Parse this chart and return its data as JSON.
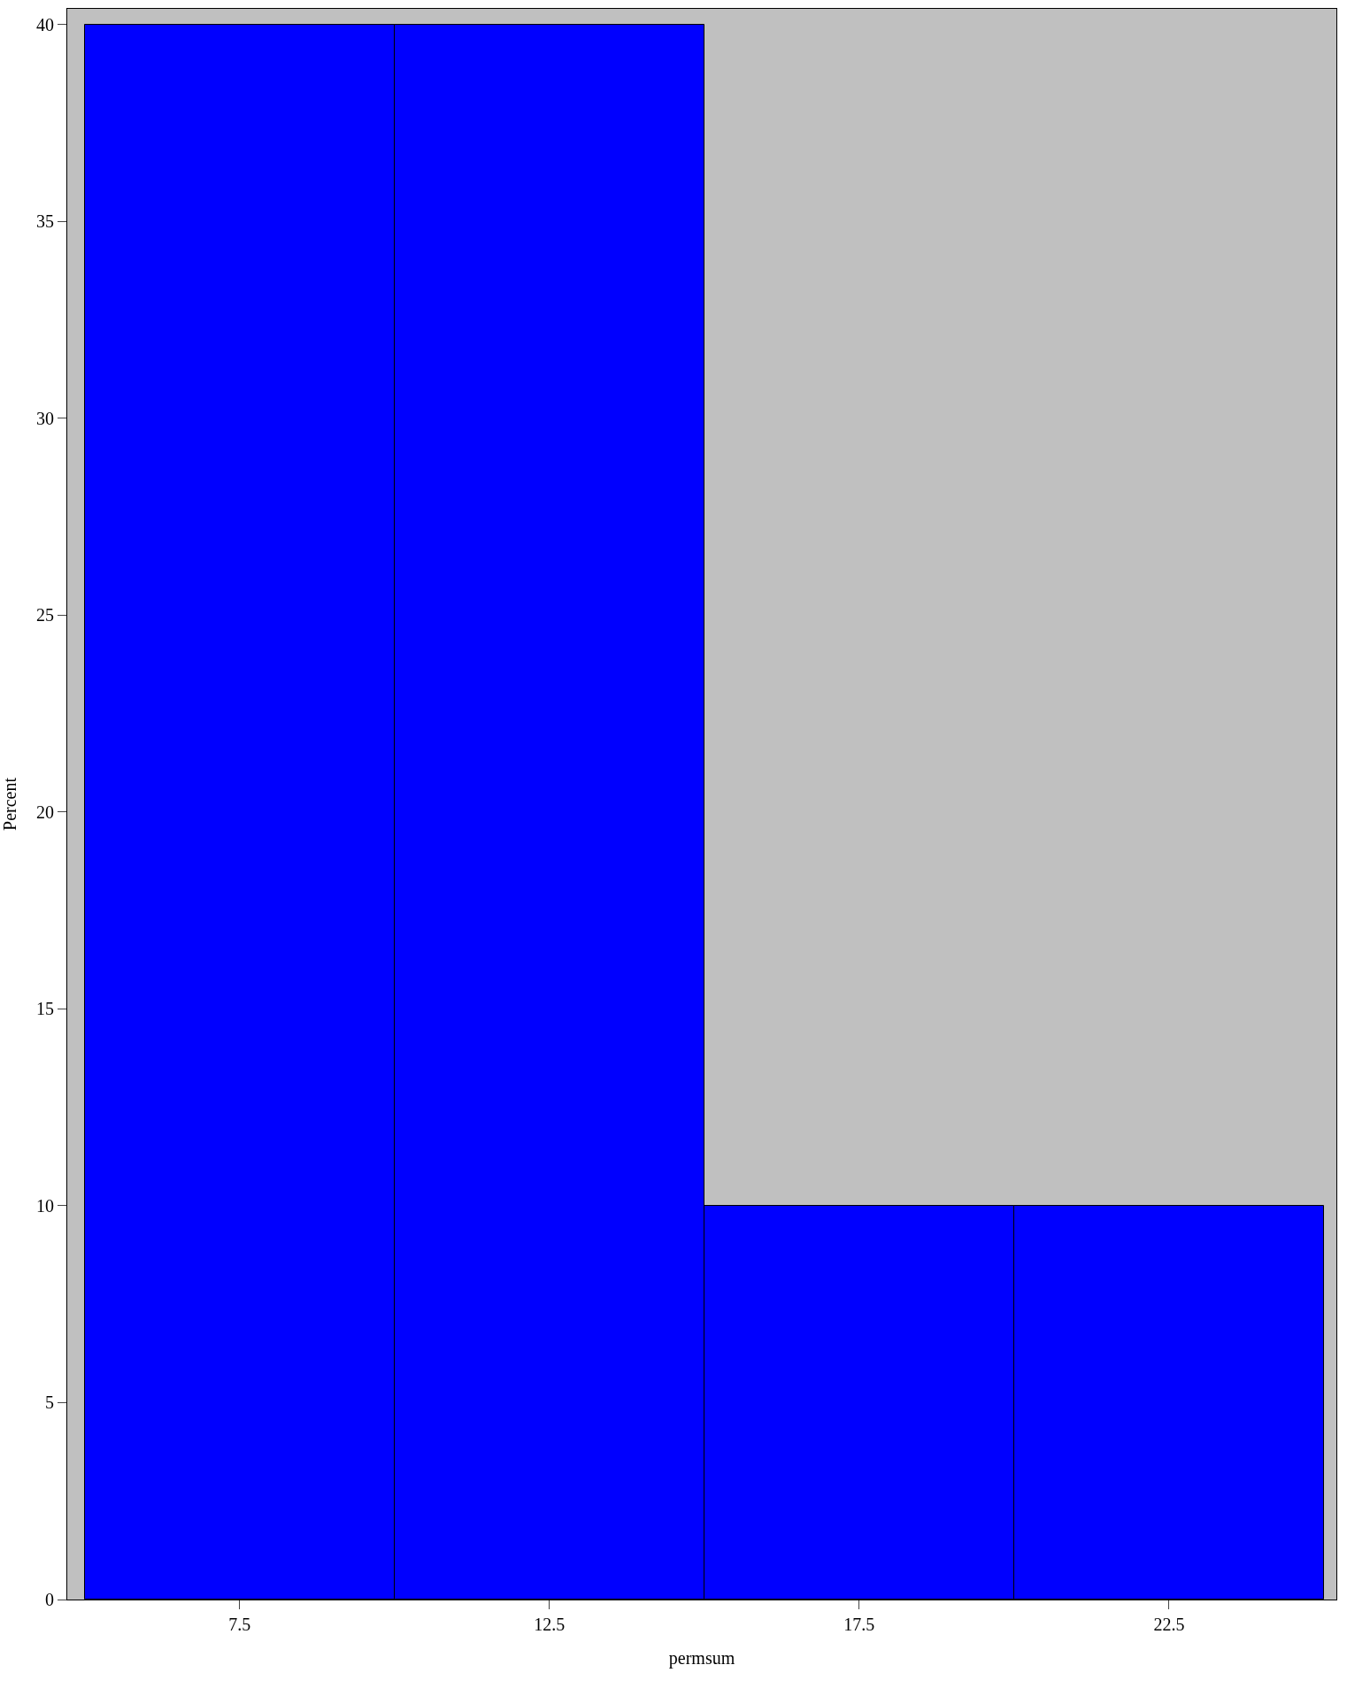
{
  "chart_data": {
    "type": "histogram",
    "xlabel": "permsum",
    "ylabel": "Percent",
    "bins": [
      5,
      10,
      15,
      20,
      25
    ],
    "values": [
      40,
      40,
      10,
      10
    ],
    "color": "#0000ff",
    "xlim": [
      4.72,
      25.2
    ],
    "xticks": [
      7.5,
      12.5,
      17.5,
      22.5
    ],
    "ylim": [
      0,
      40.4
    ],
    "yticks": [
      0,
      5,
      10,
      15,
      20,
      25,
      30,
      35,
      40
    ],
    "grid": false,
    "legend": false
  }
}
